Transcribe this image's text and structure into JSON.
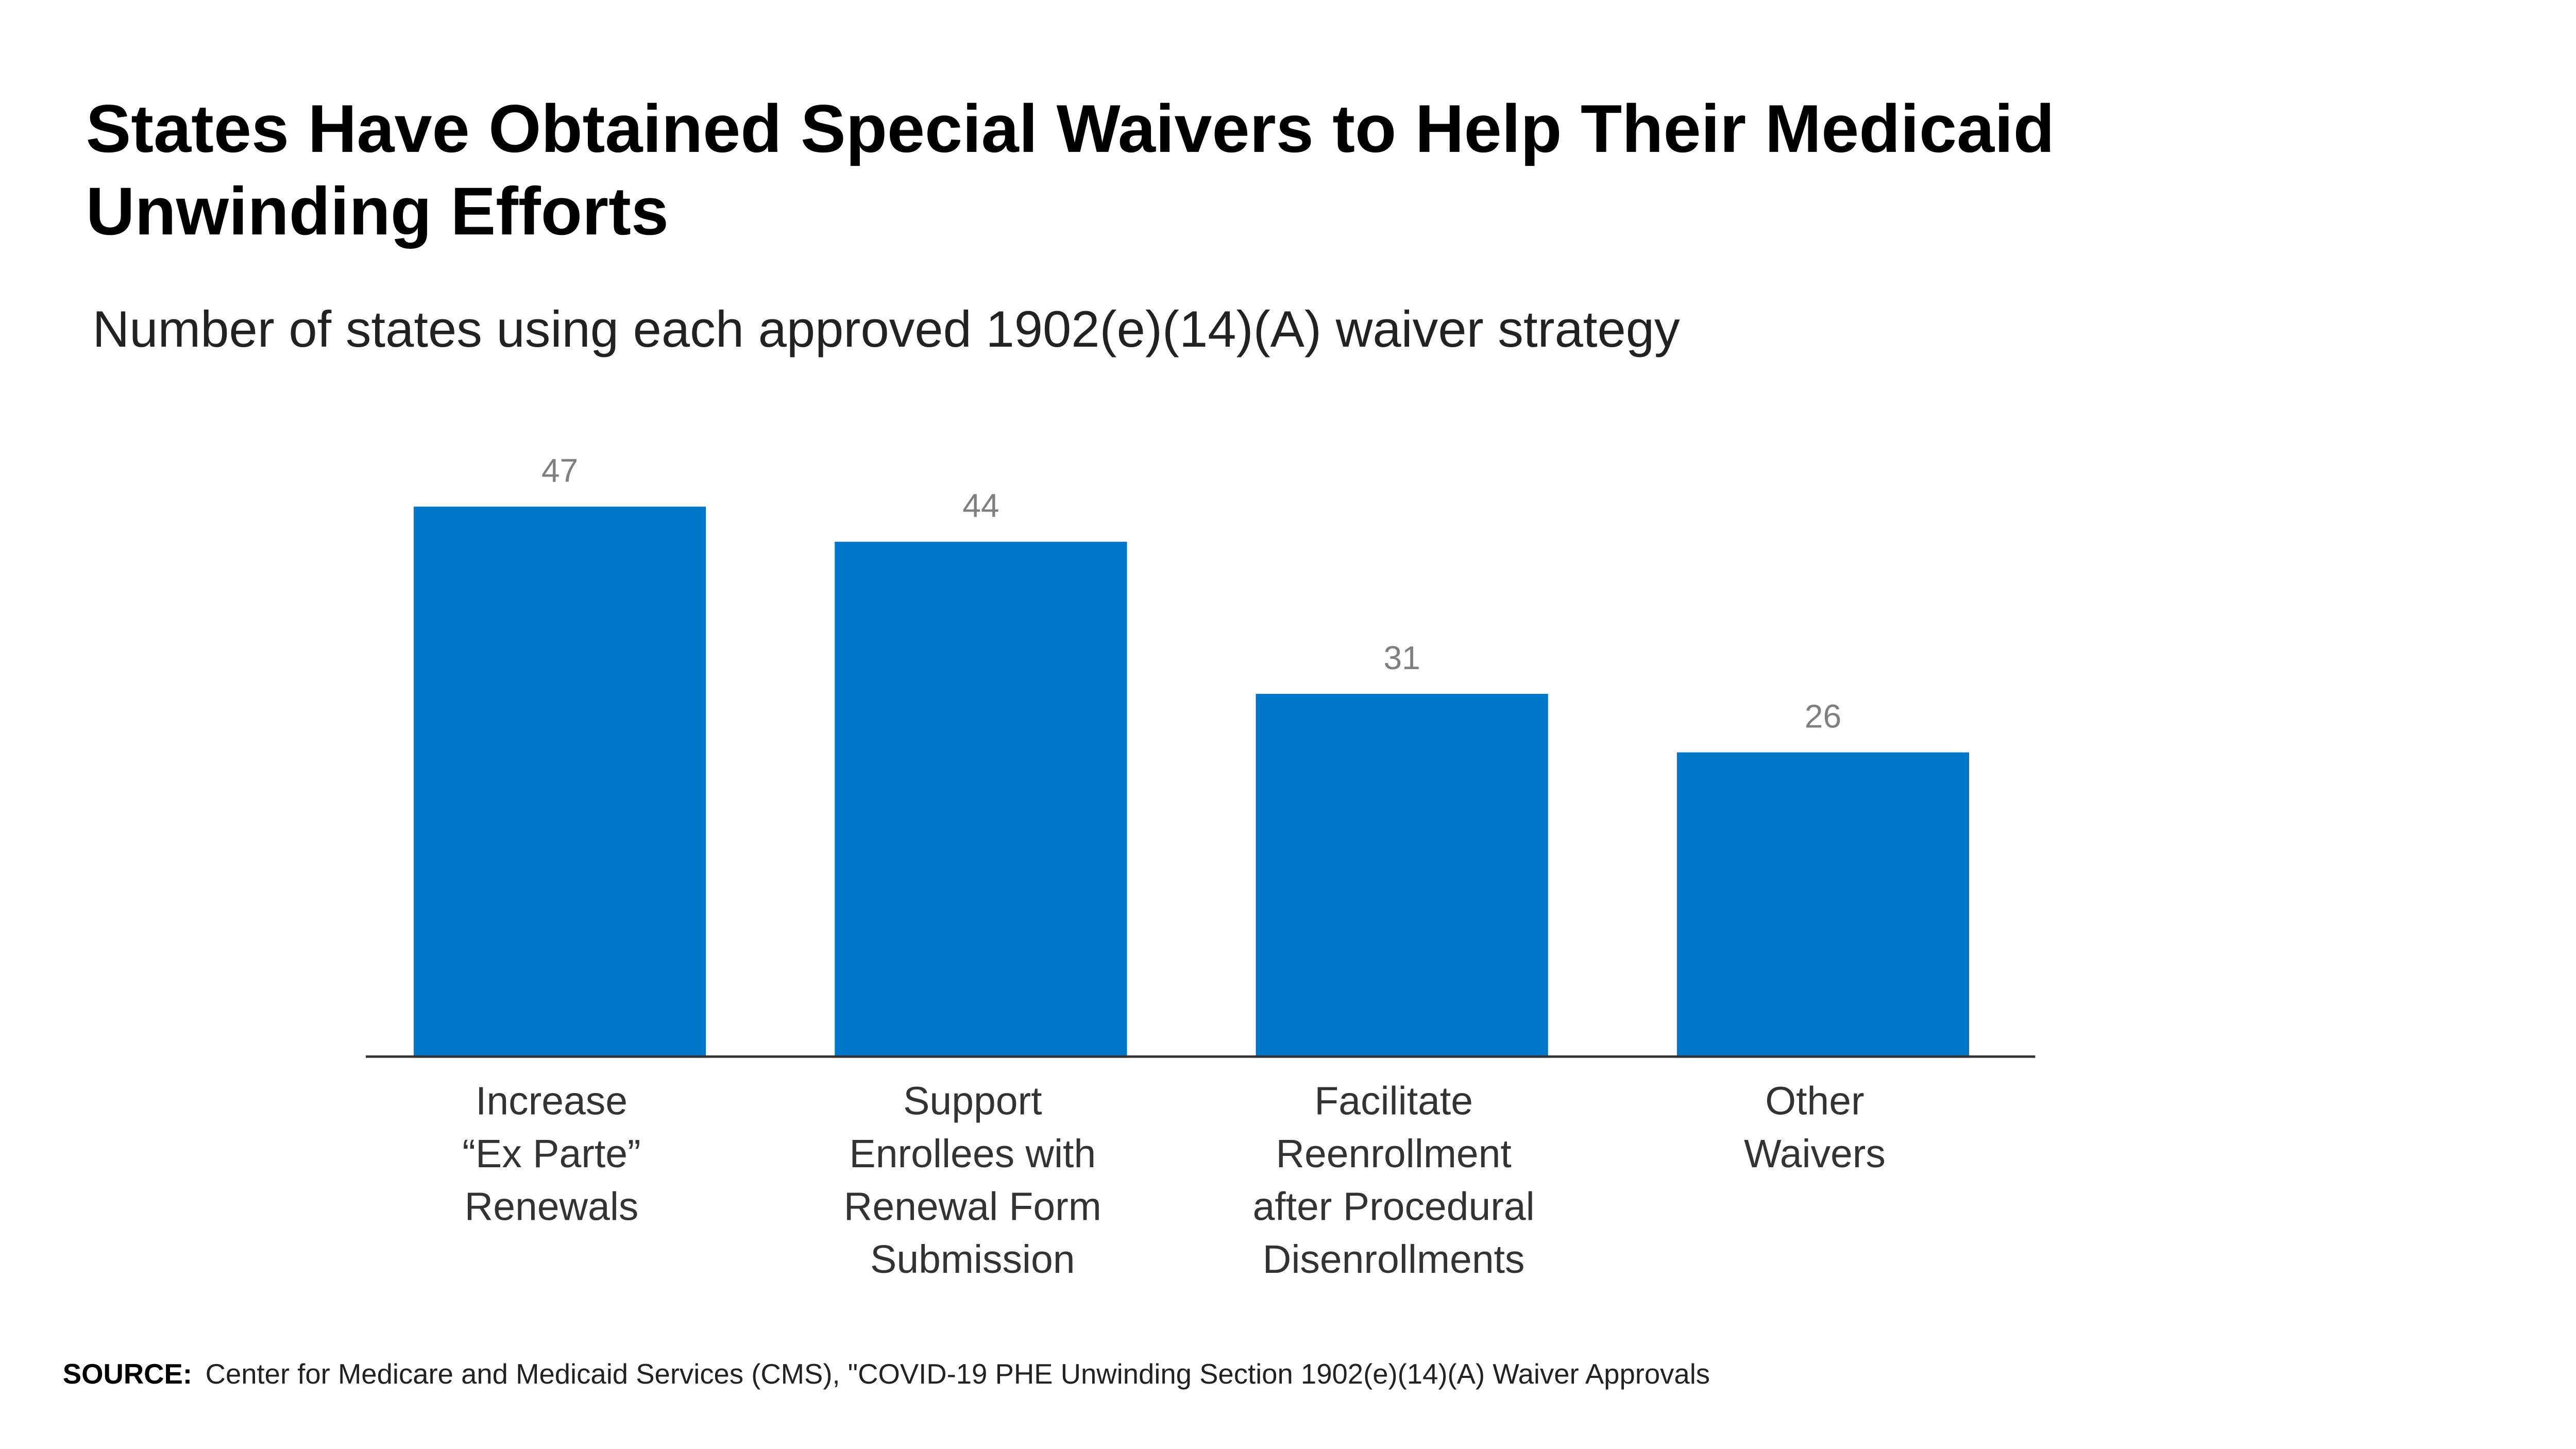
{
  "chart_data": {
    "type": "bar",
    "title": "States Have Obtained Special Waivers to Help Their Medicaid\nUnwinding Efforts",
    "subtitle": "Number of states using each approved 1902(e)(14)(A) waiver strategy",
    "categories": [
      "Increase\n“Ex Parte”\nRenewals",
      "Support\nEnrollees with\nRenewal Form\nSubmission",
      "Facilitate\nReenrollment\nafter Procedural\nDisenrollments",
      "Other\nWaivers"
    ],
    "values": [
      47,
      44,
      31,
      26
    ],
    "color": "#0077c8",
    "ylim": [
      0,
      50
    ],
    "grid": false,
    "source_label": "SOURCE:",
    "source": "Center for Medicare and Medicaid Services (CMS), \"COVID-19 PHE Unwinding Section 1902(e)(14)(A) Waiver Approvals"
  }
}
